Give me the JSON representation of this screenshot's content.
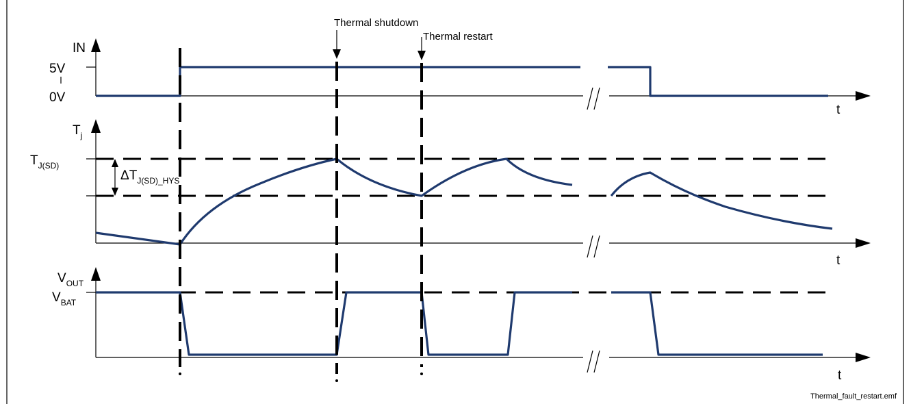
{
  "diagram": {
    "annotations": {
      "thermal_shutdown": "Thermal shutdown",
      "thermal_restart": "Thermal restart"
    },
    "panel_in": {
      "y_axis_label": "IN",
      "level_high": "5V",
      "level_low": "0V",
      "x_axis_label": "t"
    },
    "panel_tj": {
      "y_axis_label_main": "T",
      "y_axis_label_sub": "j",
      "threshold_label_main": "T",
      "threshold_label_sub": "J(SD)",
      "hysteresis_label_main": "ΔT",
      "hysteresis_label_sub": "J(SD)_HYS",
      "x_axis_label": "t"
    },
    "panel_vout": {
      "y_axis_label_main": "V",
      "y_axis_label_sub": "OUT",
      "level_label_main": "V",
      "level_label_sub": "BAT",
      "x_axis_label": "t"
    },
    "break_mark": "//",
    "footer_filename": "Thermal_fault_restart.emf"
  },
  "colors": {
    "waveform": "#1f3a6e",
    "frame": "#000000",
    "background": "#ffffff"
  }
}
